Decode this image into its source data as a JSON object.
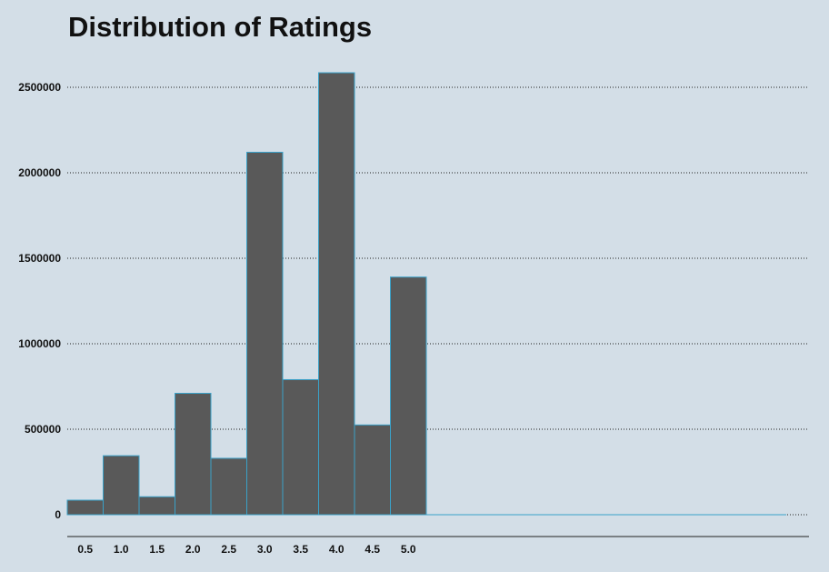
{
  "chart_data": {
    "type": "bar",
    "title": "Distribution of Ratings",
    "xlabel": "",
    "ylabel": "",
    "categories": [
      "0.5",
      "1.0",
      "1.5",
      "2.0",
      "2.5",
      "3.0",
      "3.5",
      "4.0",
      "4.5",
      "5.0"
    ],
    "values": [
      85000,
      345000,
      105000,
      710000,
      330000,
      2120000,
      790000,
      2585000,
      525000,
      1390000
    ],
    "x_ticks": [
      "0.5",
      "1.0",
      "1.5",
      "2.0",
      "2.5",
      "3.0",
      "3.5",
      "4.0",
      "4.5",
      "5.0"
    ],
    "y_ticks": [
      0,
      500000,
      1000000,
      1500000,
      2000000,
      2500000
    ],
    "ylim": [
      0,
      2600000
    ],
    "grid": "horizontal-dotted",
    "colors": {
      "background": "#d3dee7",
      "bar_fill": "#595959",
      "bar_edge": "#3aa1c8",
      "grid": "#222222",
      "axis": "#222222",
      "text": "#111111"
    }
  }
}
